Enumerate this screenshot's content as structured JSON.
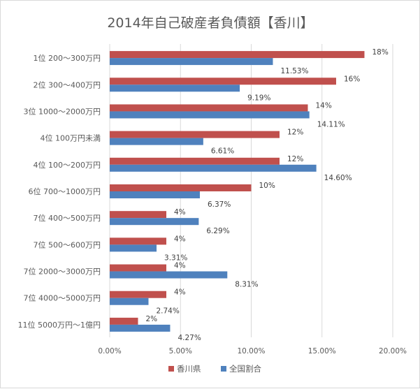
{
  "chart_data": {
    "type": "bar",
    "orientation": "horizontal",
    "title": "2014年自己破産者負債額【香川】",
    "categories": [
      "1位 200～300万円",
      "2位 300～400万円",
      "3位 1000～2000万円",
      "4位 100万円未満",
      "4位 100～200万円",
      "6位 700～1000万円",
      "7位 400～500万円",
      "7位 500～600万円",
      "7位 2000～3000万円",
      "7位 4000～5000万円",
      "11位 5000万円～1億円"
    ],
    "series": [
      {
        "name": "香川県",
        "color": "#C0504D",
        "values": [
          18,
          16,
          14,
          12,
          12,
          10,
          4,
          4,
          4,
          4,
          2
        ],
        "labels": [
          "18%",
          "16%",
          "14%",
          "12%",
          "12%",
          "10%",
          "4%",
          "4%",
          "4%",
          "4%",
          "2%"
        ]
      },
      {
        "name": "全国割合",
        "color": "#4F81BD",
        "values": [
          11.53,
          9.19,
          14.11,
          6.61,
          14.6,
          6.37,
          6.29,
          3.31,
          8.31,
          2.74,
          4.27
        ],
        "labels": [
          "11.53%",
          "9.19%",
          "14.11%",
          "6.61%",
          "14.60%",
          "6.37%",
          "6.29%",
          "3.31%",
          "8.31%",
          "2.74%",
          "4.27%"
        ]
      }
    ],
    "xlim": [
      0,
      20
    ],
    "xticks": [
      "0.00%",
      "5.00%",
      "10.00%",
      "15.00%",
      "20.00%"
    ],
    "grid": true,
    "legend": "bottom"
  }
}
